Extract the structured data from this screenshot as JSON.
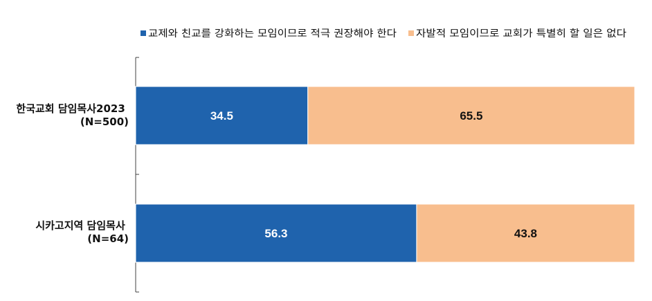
{
  "chart_data": {
    "type": "bar",
    "orientation": "horizontal",
    "stacked": true,
    "percent_stacked": true,
    "legend_position": "top-right",
    "grid": false,
    "xlim": [
      0,
      100
    ],
    "categories": [
      {
        "line1": "한국교회 담임목사2023",
        "line2": "(N=500)"
      },
      {
        "line1": "시카고지역 담임목사",
        "line2": "(N=64)"
      }
    ],
    "series": [
      {
        "name": "교제와 친교를 강화하는 모임이므로 적극 권장해야 한다",
        "color": "#1f63ad",
        "label_color": "#ffffff",
        "values": [
          34.5,
          56.3
        ]
      },
      {
        "name": "자발적 모임이므로 교회가 특별히 할 일은 없다",
        "color": "#f8be8e",
        "label_color": "#111111",
        "values": [
          65.5,
          43.8
        ]
      }
    ]
  }
}
